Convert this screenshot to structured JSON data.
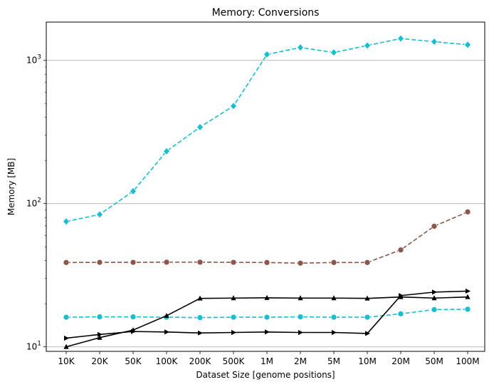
{
  "chart_data": {
    "type": "line",
    "title": "Memory:  Conversions",
    "xlabel": "Dataset Size  [genome positions]",
    "ylabel": "Memory  [MB]",
    "yscale": "log",
    "ylim": [
      9.3,
      1850
    ],
    "grid": "y-major",
    "categories": [
      "10K",
      "20K",
      "50K",
      "100K",
      "200K",
      "500K",
      "1M",
      "2M",
      "5M",
      "10M",
      "20M",
      "50M",
      "100M"
    ],
    "y_ticks": [
      {
        "value": 10,
        "base": "10",
        "exp": "1"
      },
      {
        "value": 100,
        "base": "10",
        "exp": "2"
      },
      {
        "value": 1000,
        "base": "10",
        "exp": "3"
      }
    ],
    "series": [
      {
        "color": "#17becf",
        "dash": "6,3",
        "marker": "diamond",
        "values": [
          75,
          84,
          122,
          232,
          342,
          480,
          1100,
          1230,
          1135,
          1270,
          1420,
          1350,
          1285
        ]
      },
      {
        "color": "#8c564b",
        "dash": "6,3",
        "marker": "circle",
        "values": [
          38.8,
          38.9,
          38.9,
          39.0,
          39.0,
          38.9,
          38.8,
          38.4,
          38.8,
          38.8,
          47.5,
          69.5,
          87.5
        ]
      },
      {
        "color": "#17becf",
        "dash": "6,3",
        "marker": "circle",
        "values": [
          16.1,
          16.2,
          16.2,
          16.1,
          16.0,
          16.1,
          16.1,
          16.2,
          16.1,
          16.1,
          17.0,
          18.2,
          18.3
        ]
      },
      {
        "color": "#000000",
        "dash": "",
        "marker": "triangle-up",
        "values": [
          10.0,
          11.6,
          13.1,
          16.5,
          21.8,
          21.9,
          22.0,
          21.9,
          21.9,
          21.8,
          22.3,
          21.9,
          22.3
        ]
      },
      {
        "color": "#000000",
        "dash": "",
        "marker": "triangle-right",
        "values": [
          11.5,
          12.2,
          12.8,
          12.7,
          12.5,
          12.6,
          12.7,
          12.6,
          12.6,
          12.4,
          22.8,
          24.1,
          24.5
        ]
      }
    ]
  }
}
